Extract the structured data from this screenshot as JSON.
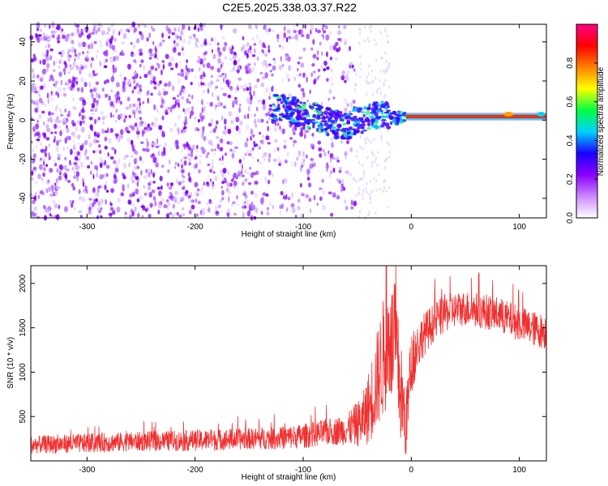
{
  "figure_title": "C2E5.2025.338.03.37.R22",
  "chart_data": [
    {
      "type": "heatmap",
      "xlabel": "Height of straight line (km)",
      "ylabel": "Frequency (Hz)",
      "xlim": [
        -352,
        125
      ],
      "ylim": [
        -50,
        49
      ],
      "xticks": [
        -300,
        -200,
        -100,
        0,
        100
      ],
      "xtick_labels": [
        "-300",
        "-200",
        "-100",
        "0",
        "100"
      ],
      "yticks": [
        -40,
        -20,
        0,
        20,
        40
      ],
      "ytick_labels": [
        "-40",
        "-20",
        "0",
        "20",
        "40"
      ],
      "colorbar": {
        "label": "Normalized spectral amplitude",
        "range": [
          0,
          1
        ],
        "ticks": [
          0.0,
          0.2,
          0.4,
          0.6,
          0.8
        ],
        "tick_labels": [
          "0.0",
          "0.2",
          "0.4",
          "0.6",
          "0.8"
        ],
        "colors": [
          "#ffffff",
          "#cc88ff",
          "#8a00ff",
          "#1a00ff",
          "#00d0ff",
          "#00ff40",
          "#ffff00",
          "#ff8000",
          "#ff0000",
          "#ff0088"
        ]
      },
      "noise_region_km": [
        -352,
        -52
      ],
      "sparse_region_km": [
        -52,
        -20
      ],
      "signal_track": [
        {
          "x": -125,
          "f": 6
        },
        {
          "x": -110,
          "f": 5
        },
        {
          "x": -100,
          "f": 3
        },
        {
          "x": -90,
          "f": 2
        },
        {
          "x": -80,
          "f": 0
        },
        {
          "x": -70,
          "f": -2
        },
        {
          "x": -60,
          "f": -3
        },
        {
          "x": -52,
          "f": -1
        },
        {
          "x": -45,
          "f": 0
        },
        {
          "x": -35,
          "f": 3
        },
        {
          "x": -25,
          "f": 2
        },
        {
          "x": -15,
          "f": 1
        },
        {
          "x": -5,
          "f": 2
        },
        {
          "x": 0,
          "f": 3
        },
        {
          "x": 20,
          "f": 1.5
        },
        {
          "x": 60,
          "f": 1.5
        },
        {
          "x": 100,
          "f": 1.5
        },
        {
          "x": 125,
          "f": 2
        }
      ]
    },
    {
      "type": "line",
      "xlabel": "Height of straight line (km)",
      "ylabel": "SNR (10 * v/v)",
      "xlim": [
        -352,
        125
      ],
      "ylim": [
        0,
        2200
      ],
      "xticks": [
        -300,
        -200,
        -100,
        0,
        100
      ],
      "xtick_labels": [
        "-300",
        "-200",
        "-100",
        "0",
        "100"
      ],
      "yticks": [
        500,
        1000,
        1500,
        2000
      ],
      "ytick_labels": [
        "500",
        "1000",
        "1500",
        "2000"
      ],
      "color": "#f03030",
      "series": [
        {
          "name": "SNR",
          "x": [
            -352,
            -300,
            -250,
            -200,
            -150,
            -120,
            -100,
            -80,
            -60,
            -45,
            -38,
            -32,
            -25,
            -20,
            -15,
            -10,
            -5,
            0,
            10,
            20,
            30,
            40,
            50,
            60,
            70,
            80,
            90,
            100,
            110,
            125
          ],
          "y": [
            180,
            200,
            220,
            230,
            250,
            260,
            280,
            320,
            350,
            450,
            650,
            900,
            1200,
            1350,
            1300,
            800,
            400,
            1100,
            1400,
            1550,
            1650,
            1700,
            1720,
            1700,
            1680,
            1650,
            1600,
            1550,
            1500,
            1450
          ],
          "noise_amplitude": [
            100,
            110,
            110,
            120,
            120,
            130,
            140,
            150,
            170,
            300,
            450,
            550,
            700,
            700,
            700,
            600,
            400,
            350,
            250,
            220,
            220,
            200,
            200,
            200,
            200,
            200,
            200,
            200,
            200,
            200
          ]
        }
      ]
    }
  ]
}
